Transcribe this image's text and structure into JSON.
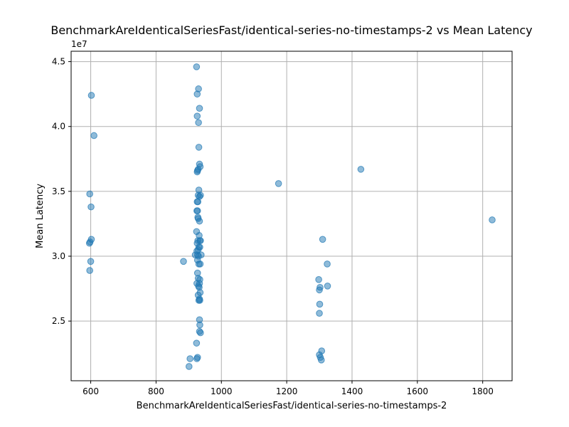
{
  "chart_data": {
    "type": "scatter",
    "title": "BenchmarkAreIdenticalSeriesFast/identical-series-no-timestamps-2 vs Mean Latency",
    "xlabel": "BenchmarkAreIdenticalSeriesFast/identical-series-no-timestamps-2",
    "ylabel": "Mean Latency",
    "y_scale_label": "1e7",
    "xlim": [
      540,
      1890
    ],
    "ylim": [
      20400000,
      45800000
    ],
    "x_ticks": [
      600,
      800,
      1000,
      1200,
      1400,
      1600,
      1800
    ],
    "x_tick_labels": [
      "600",
      "800",
      "1000",
      "1200",
      "1400",
      "1600",
      "1800"
    ],
    "y_ticks": [
      25000000,
      30000000,
      35000000,
      40000000,
      45000000
    ],
    "y_tick_labels": [
      "2.5",
      "3.0",
      "3.5",
      "4.0",
      "4.5"
    ],
    "grid": true,
    "color": "#1f77b4",
    "points": [
      {
        "x": 602,
        "y": 42400000
      },
      {
        "x": 610,
        "y": 39300000
      },
      {
        "x": 597,
        "y": 34800000
      },
      {
        "x": 601,
        "y": 33800000
      },
      {
        "x": 602,
        "y": 31300000
      },
      {
        "x": 598,
        "y": 31100000
      },
      {
        "x": 596,
        "y": 31000000
      },
      {
        "x": 600,
        "y": 29600000
      },
      {
        "x": 597,
        "y": 28900000
      },
      {
        "x": 924,
        "y": 44600000
      },
      {
        "x": 930,
        "y": 42900000
      },
      {
        "x": 926,
        "y": 42500000
      },
      {
        "x": 933,
        "y": 41400000
      },
      {
        "x": 926,
        "y": 40800000
      },
      {
        "x": 930,
        "y": 40300000
      },
      {
        "x": 931,
        "y": 38400000
      },
      {
        "x": 933,
        "y": 37100000
      },
      {
        "x": 935,
        "y": 36900000
      },
      {
        "x": 929,
        "y": 36700000
      },
      {
        "x": 927,
        "y": 36600000
      },
      {
        "x": 926,
        "y": 36500000
      },
      {
        "x": 931,
        "y": 35100000
      },
      {
        "x": 929,
        "y": 34700000
      },
      {
        "x": 936,
        "y": 34700000
      },
      {
        "x": 933,
        "y": 34600000
      },
      {
        "x": 928,
        "y": 34200000
      },
      {
        "x": 926,
        "y": 34200000
      },
      {
        "x": 925,
        "y": 33500000
      },
      {
        "x": 927,
        "y": 33500000
      },
      {
        "x": 928,
        "y": 33000000
      },
      {
        "x": 929,
        "y": 32900000
      },
      {
        "x": 933,
        "y": 32700000
      },
      {
        "x": 924,
        "y": 31900000
      },
      {
        "x": 932,
        "y": 31600000
      },
      {
        "x": 928,
        "y": 31200000
      },
      {
        "x": 934,
        "y": 31200000
      },
      {
        "x": 936,
        "y": 31200000
      },
      {
        "x": 926,
        "y": 31000000
      },
      {
        "x": 931,
        "y": 30700000
      },
      {
        "x": 934,
        "y": 30700000
      },
      {
        "x": 929,
        "y": 30500000
      },
      {
        "x": 925,
        "y": 30400000
      },
      {
        "x": 920,
        "y": 30100000
      },
      {
        "x": 927,
        "y": 30100000
      },
      {
        "x": 938,
        "y": 30100000
      },
      {
        "x": 930,
        "y": 30000000
      },
      {
        "x": 927,
        "y": 29700000
      },
      {
        "x": 931,
        "y": 29400000
      },
      {
        "x": 935,
        "y": 29400000
      },
      {
        "x": 927,
        "y": 28700000
      },
      {
        "x": 929,
        "y": 28300000
      },
      {
        "x": 934,
        "y": 28200000
      },
      {
        "x": 925,
        "y": 27900000
      },
      {
        "x": 933,
        "y": 27900000
      },
      {
        "x": 930,
        "y": 27700000
      },
      {
        "x": 932,
        "y": 27600000
      },
      {
        "x": 935,
        "y": 27200000
      },
      {
        "x": 929,
        "y": 27000000
      },
      {
        "x": 933,
        "y": 26700000
      },
      {
        "x": 931,
        "y": 26600000
      },
      {
        "x": 934,
        "y": 26600000
      },
      {
        "x": 933,
        "y": 25100000
      },
      {
        "x": 934,
        "y": 24700000
      },
      {
        "x": 933,
        "y": 24200000
      },
      {
        "x": 936,
        "y": 24100000
      },
      {
        "x": 924,
        "y": 23300000
      },
      {
        "x": 927,
        "y": 22200000
      },
      {
        "x": 925,
        "y": 22100000
      },
      {
        "x": 904,
        "y": 22100000
      },
      {
        "x": 901,
        "y": 21500000
      },
      {
        "x": 884,
        "y": 29600000
      },
      {
        "x": 1175,
        "y": 35600000
      },
      {
        "x": 1427,
        "y": 36700000
      },
      {
        "x": 1829,
        "y": 32800000
      },
      {
        "x": 1310,
        "y": 31300000
      },
      {
        "x": 1324,
        "y": 29400000
      },
      {
        "x": 1298,
        "y": 28200000
      },
      {
        "x": 1302,
        "y": 27600000
      },
      {
        "x": 1325,
        "y": 27700000
      },
      {
        "x": 1300,
        "y": 27400000
      },
      {
        "x": 1301,
        "y": 26300000
      },
      {
        "x": 1300,
        "y": 25600000
      },
      {
        "x": 1307,
        "y": 22700000
      },
      {
        "x": 1300,
        "y": 22400000
      },
      {
        "x": 1303,
        "y": 22200000
      },
      {
        "x": 1306,
        "y": 22000000
      }
    ]
  }
}
